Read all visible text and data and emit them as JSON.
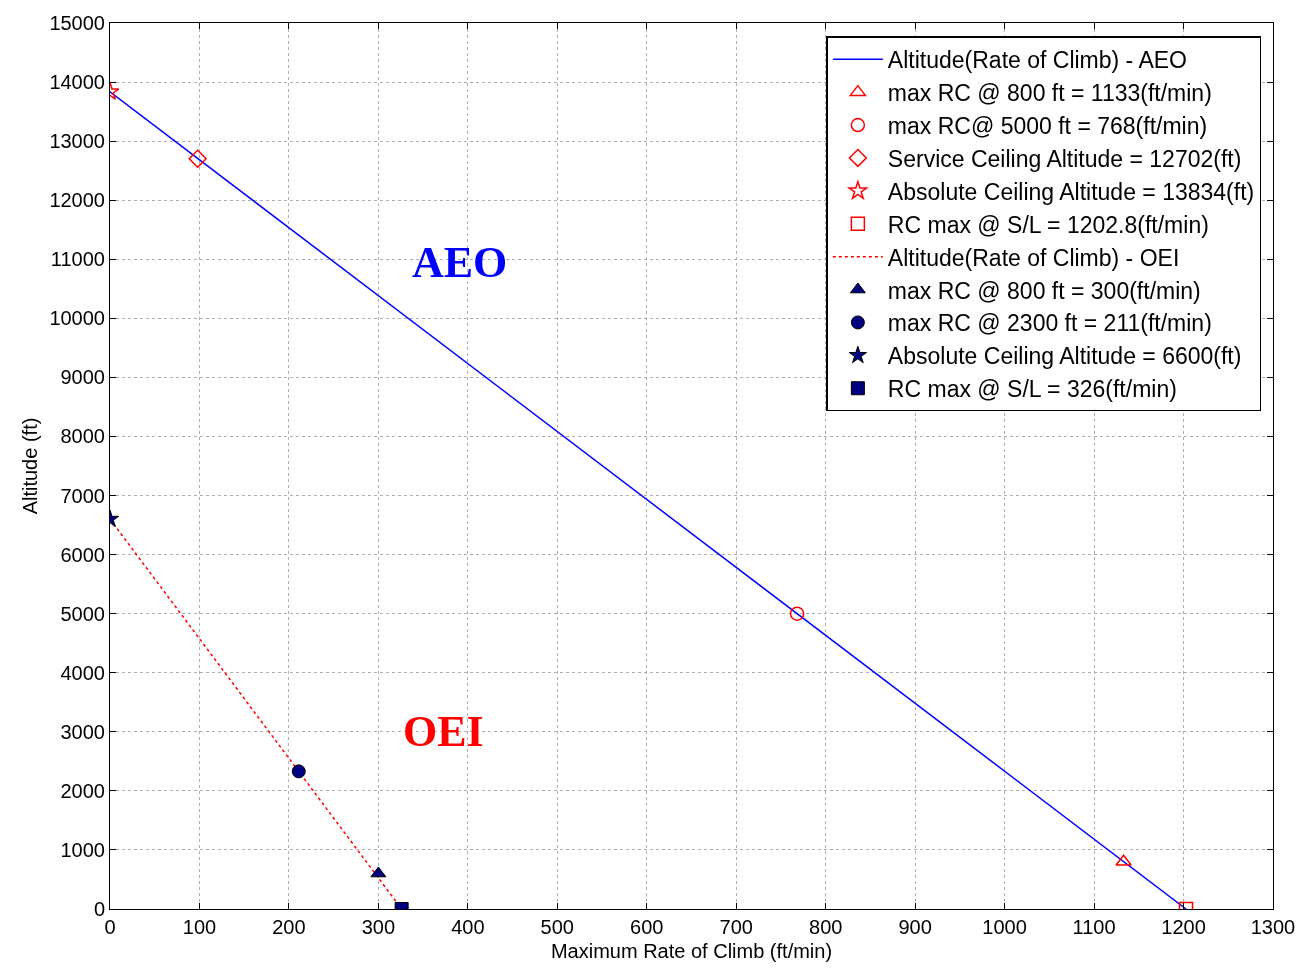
{
  "chart_data": {
    "type": "line",
    "xlabel": "Maximum Rate of Climb (ft/min)",
    "ylabel": "Altitude (ft)",
    "xlim": [
      0,
      1300
    ],
    "xticks": [
      0,
      100,
      200,
      300,
      400,
      500,
      600,
      700,
      800,
      900,
      1000,
      1100,
      1200,
      1300
    ],
    "ylim": [
      0,
      15000
    ],
    "yticks": [
      0,
      1000,
      2000,
      3000,
      4000,
      5000,
      6000,
      7000,
      8000,
      9000,
      10000,
      11000,
      12000,
      13000,
      14000,
      15000
    ],
    "grid": true,
    "legend": "top right",
    "series": [
      {
        "name": "Altitude(Rate of Climb) - AEO",
        "color": "#0000ff",
        "line_style": "solid",
        "marker": "none",
        "x": [
          0,
          1202.8
        ],
        "values": [
          13834,
          0
        ]
      },
      {
        "name": "max RC @ 800 ft = 1133(ft/min)",
        "type": "scatter",
        "color": "#ff0000",
        "marker": "triangle",
        "x": [
          1133
        ],
        "values": [
          800
        ]
      },
      {
        "name": "max RC@ 5000 ft = 768(ft/min)",
        "type": "scatter",
        "color": "#ff0000",
        "marker": "circle",
        "x": [
          768
        ],
        "values": [
          5000
        ]
      },
      {
        "name": "Service Ceiling Altitude = 12702(ft)",
        "type": "scatter",
        "color": "#ff0000",
        "marker": "diamond",
        "x": [
          98
        ],
        "values": [
          12702
        ]
      },
      {
        "name": "Absolute Ceiling Altitude = 13834(ft)",
        "type": "scatter",
        "color": "#ff0000",
        "marker": "star",
        "x": [
          0
        ],
        "values": [
          13834
        ]
      },
      {
        "name": "RC max @ S/L = 1202.8(ft/min)",
        "type": "scatter",
        "color": "#ff0000",
        "marker": "square",
        "x": [
          1202.8
        ],
        "values": [
          0
        ]
      },
      {
        "name": "Altitude(Rate of Climb) - OEI",
        "color": "#ff0000",
        "line_style": "dotted",
        "marker": "none",
        "x": [
          0,
          326
        ],
        "values": [
          6600,
          0
        ]
      },
      {
        "name": "max RC @ 800 ft = 300(ft/min)",
        "type": "scatter",
        "color": "#000080",
        "marker": "triangle",
        "x": [
          300
        ],
        "values": [
          600
        ]
      },
      {
        "name": "max RC @ 2300 ft = 211(ft/min)",
        "type": "scatter",
        "color": "#000080",
        "marker": "circle",
        "x": [
          211
        ],
        "values": [
          2330
        ]
      },
      {
        "name": "Absolute Ceiling Altitude = 6600(ft)",
        "type": "scatter",
        "color": "#000080",
        "marker": "star",
        "x": [
          0
        ],
        "values": [
          6600
        ]
      },
      {
        "name": "RC max @ S/L = 326(ft/min)",
        "type": "scatter",
        "color": "#000080",
        "marker": "square",
        "x": [
          326
        ],
        "values": [
          0
        ]
      }
    ],
    "annotations": [
      "AEO",
      "OEI"
    ]
  }
}
